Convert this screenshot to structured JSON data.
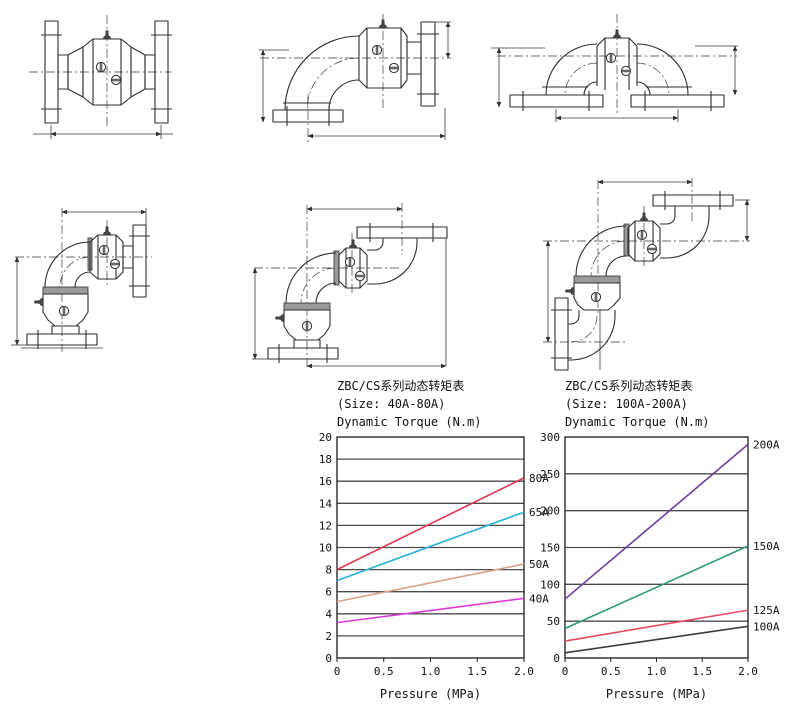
{
  "page": {
    "background": "#ffffff"
  },
  "drawings": [
    {
      "name": "straight-flanged-rotary-joint"
    },
    {
      "name": "elbow-rotary-joint-bottom-flange"
    },
    {
      "name": "double-elbow-rotary-joint"
    },
    {
      "name": "dual-body-elbow-joint-vertical"
    },
    {
      "name": "dual-body-elbow-joint-top-flange"
    },
    {
      "name": "dual-body-s-type-joint"
    }
  ],
  "chart_data": [
    {
      "type": "line",
      "title": "ZBC/CS系列动态转矩表",
      "subtitle": "(Size: 40A-80A)",
      "ylabel": "Dynamic Torque (N.m)",
      "xlabel": "Pressure (MPa)",
      "xlim": [
        0,
        2.0
      ],
      "ylim": [
        0,
        20
      ],
      "xticks": [
        "0",
        "0.5",
        "1.0",
        "1.5",
        "2.0"
      ],
      "yticks": [
        0,
        2,
        4,
        6,
        8,
        10,
        12,
        14,
        16,
        18,
        20
      ],
      "grid": "horizontal",
      "legend_position": "right-of-line-ends",
      "series": [
        {
          "name": "80A",
          "color": "#de3450",
          "x": [
            0,
            2.0
          ],
          "values": [
            8.0,
            16.3
          ]
        },
        {
          "name": "65A",
          "color": "#27b2d8",
          "x": [
            0,
            2.0
          ],
          "values": [
            7.0,
            13.2
          ]
        },
        {
          "name": "50A",
          "color": "#d8a285",
          "x": [
            0,
            2.0
          ],
          "values": [
            5.1,
            8.5
          ]
        },
        {
          "name": "40A",
          "color": "#e23ad6",
          "x": [
            0,
            2.0
          ],
          "values": [
            3.2,
            5.4
          ]
        }
      ]
    },
    {
      "type": "line",
      "title": "ZBC/CS系列动态转矩表",
      "subtitle": "(Size: 100A-200A)",
      "ylabel": "Dynamic Torque (N.m)",
      "xlabel": "Pressure (MPa)",
      "xlim": [
        0,
        2.0
      ],
      "ylim": [
        0,
        300
      ],
      "xticks": [
        "0",
        "0.5",
        "1.0",
        "1.5",
        "2.0"
      ],
      "yticks": [
        0,
        50,
        100,
        150,
        200,
        250,
        300
      ],
      "grid": "horizontal",
      "legend_position": "right-of-line-ends",
      "series": [
        {
          "name": "200A",
          "color": "#6a3f9e",
          "x": [
            0,
            2.0
          ],
          "values": [
            80,
            290
          ]
        },
        {
          "name": "150A",
          "color": "#2f9e6d",
          "x": [
            0,
            2.0
          ],
          "values": [
            40,
            152
          ]
        },
        {
          "name": "125A",
          "color": "#e84a5e",
          "x": [
            0,
            2.0
          ],
          "values": [
            23,
            65
          ]
        },
        {
          "name": "100A",
          "color": "#3c3c3c",
          "x": [
            0,
            2.0
          ],
          "values": [
            7,
            43
          ]
        }
      ]
    }
  ]
}
